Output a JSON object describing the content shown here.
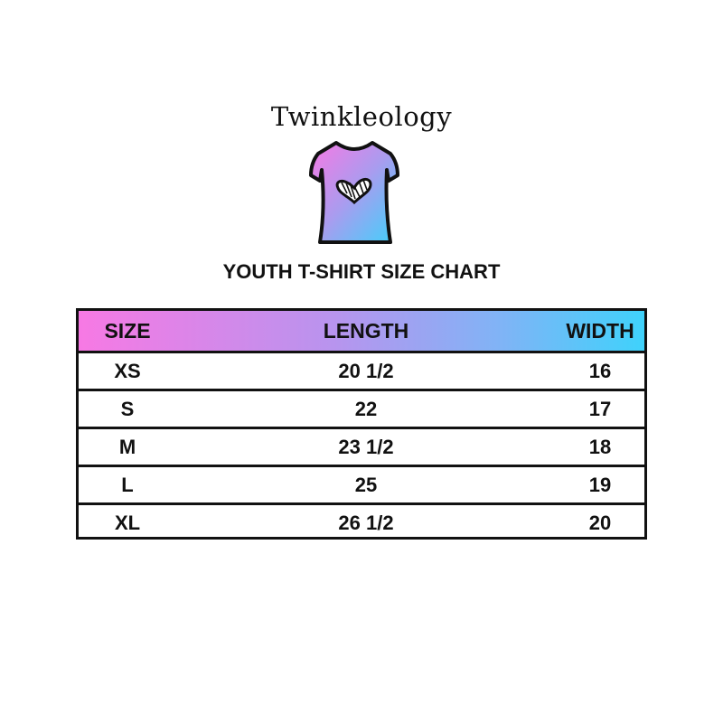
{
  "brand": "Twinkleology",
  "title": "YOUTH T-SHIRT SIZE CHART",
  "colors": {
    "gradient_start": "#f779e4",
    "gradient_end": "#3fd2fb",
    "border": "#111111"
  },
  "table": {
    "headers": [
      "SIZE",
      "LENGTH",
      "WIDTH"
    ],
    "rows": [
      [
        "XS",
        "20 1/2",
        "16"
      ],
      [
        "S",
        "22",
        "17"
      ],
      [
        "M",
        "23 1/2",
        "18"
      ],
      [
        "L",
        "25",
        "19"
      ],
      [
        "XL",
        "26 1/2",
        "20"
      ]
    ]
  }
}
